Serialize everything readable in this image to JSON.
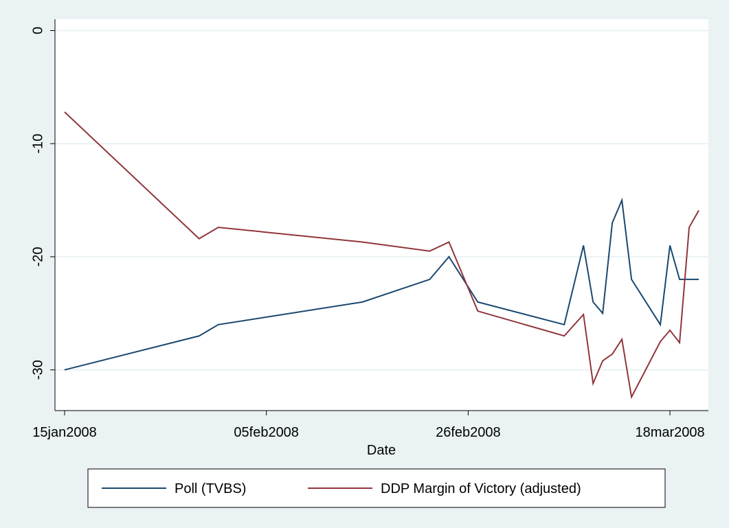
{
  "chart_data": {
    "type": "line",
    "x_label": "Date",
    "x": [
      "2008-01-15",
      "2008-01-29",
      "2008-01-31",
      "2008-02-15",
      "2008-02-22",
      "2008-02-24",
      "2008-02-27",
      "2008-03-07",
      "2008-03-09",
      "2008-03-10",
      "2008-03-11",
      "2008-03-12",
      "2008-03-13",
      "2008-03-14",
      "2008-03-17",
      "2008-03-18",
      "2008-03-19",
      "2008-03-20",
      "2008-03-21"
    ],
    "series": [
      {
        "name": "Poll (TVBS)",
        "color": "#1a476f",
        "values": [
          -30,
          -27,
          -26,
          -24,
          -22,
          -20,
          -24,
          -26,
          -19,
          -24,
          -25,
          -17,
          -15,
          -22,
          -26,
          -19,
          -22,
          -22,
          -22
        ]
      },
      {
        "name": "DDP Margin of Victory (adjusted)",
        "color": "#90353b",
        "values": [
          -7.2,
          -18.4,
          -17.4,
          -18.7,
          -19.5,
          -18.7,
          -24.8,
          -27,
          -25.1,
          -31.2,
          -29.2,
          -28.6,
          -27.3,
          -32.4,
          -27.5,
          -26.5,
          -27.6,
          -17.4,
          -15.9
        ]
      }
    ],
    "xlim": [
      "2008-01-14",
      "2008-03-22"
    ],
    "xticks": [
      {
        "value": "2008-01-15",
        "label": "15jan2008"
      },
      {
        "value": "2008-02-05",
        "label": "05feb2008"
      },
      {
        "value": "2008-02-26",
        "label": "26feb2008"
      },
      {
        "value": "2008-03-18",
        "label": "18mar2008"
      }
    ],
    "ylim": [
      -33.6,
      1
    ],
    "yticks": [
      0,
      -10,
      -20,
      -30
    ],
    "grid": true
  }
}
